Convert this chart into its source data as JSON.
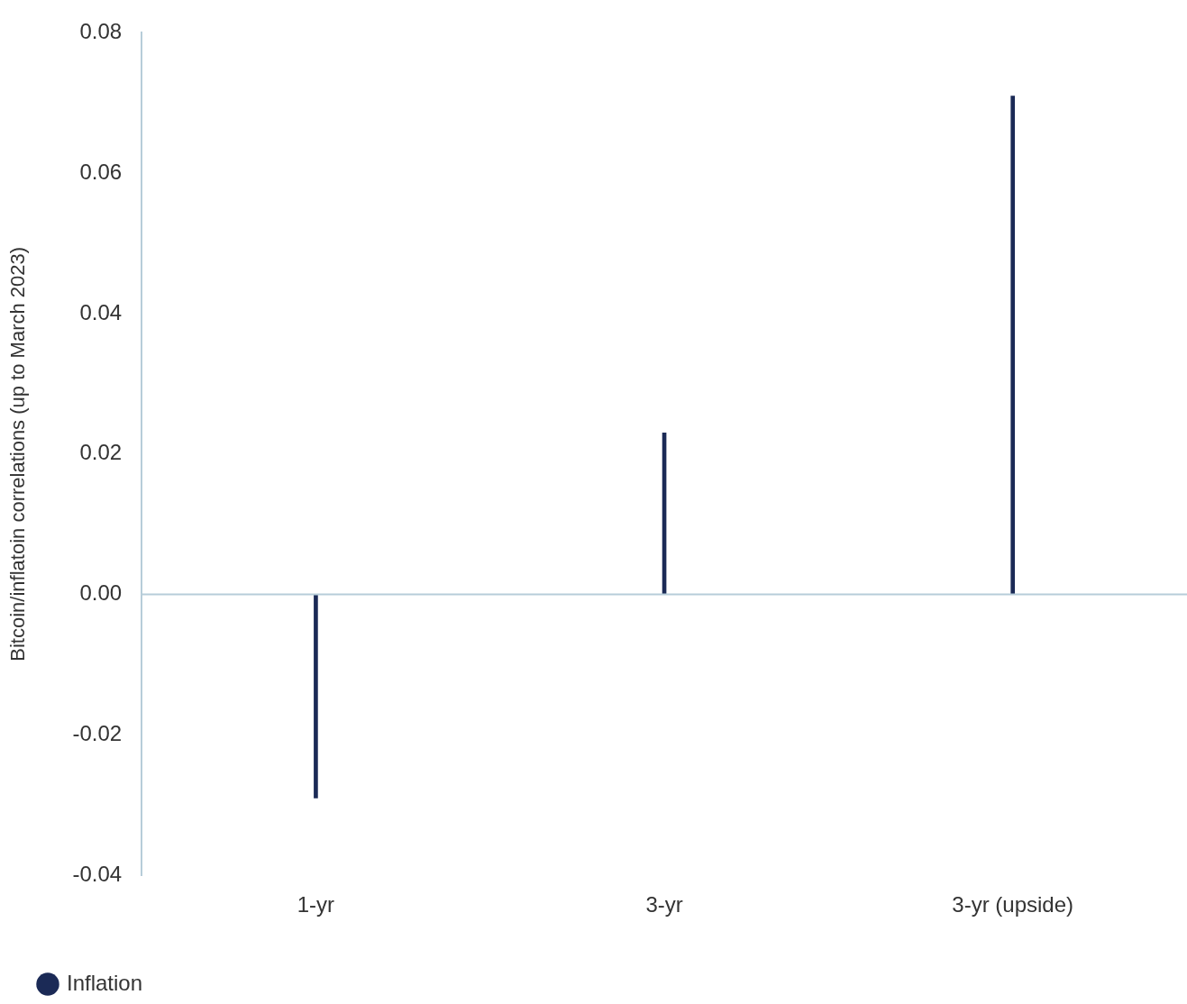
{
  "chart_data": {
    "type": "bar",
    "ylabel": "Bitcoin/inflatoin correlations (up to March 2023)",
    "categories": [
      "1-yr",
      "3-yr",
      "3-yr (upside)"
    ],
    "series": [
      {
        "name": "Inflation",
        "color": "#1b2a56",
        "values": [
          -0.029,
          0.023,
          0.071
        ]
      }
    ],
    "ylim": [
      -0.04,
      0.08
    ],
    "yticks": [
      -0.04,
      -0.02,
      {
        "value": 0,
        "label": "0.00"
      },
      0.02,
      0.04,
      0.06,
      0.08
    ],
    "grid": false,
    "ref_lines": [
      {
        "axis": "y",
        "value": 0,
        "color": "#b7cdd9"
      }
    ],
    "legend": "bottom left"
  }
}
